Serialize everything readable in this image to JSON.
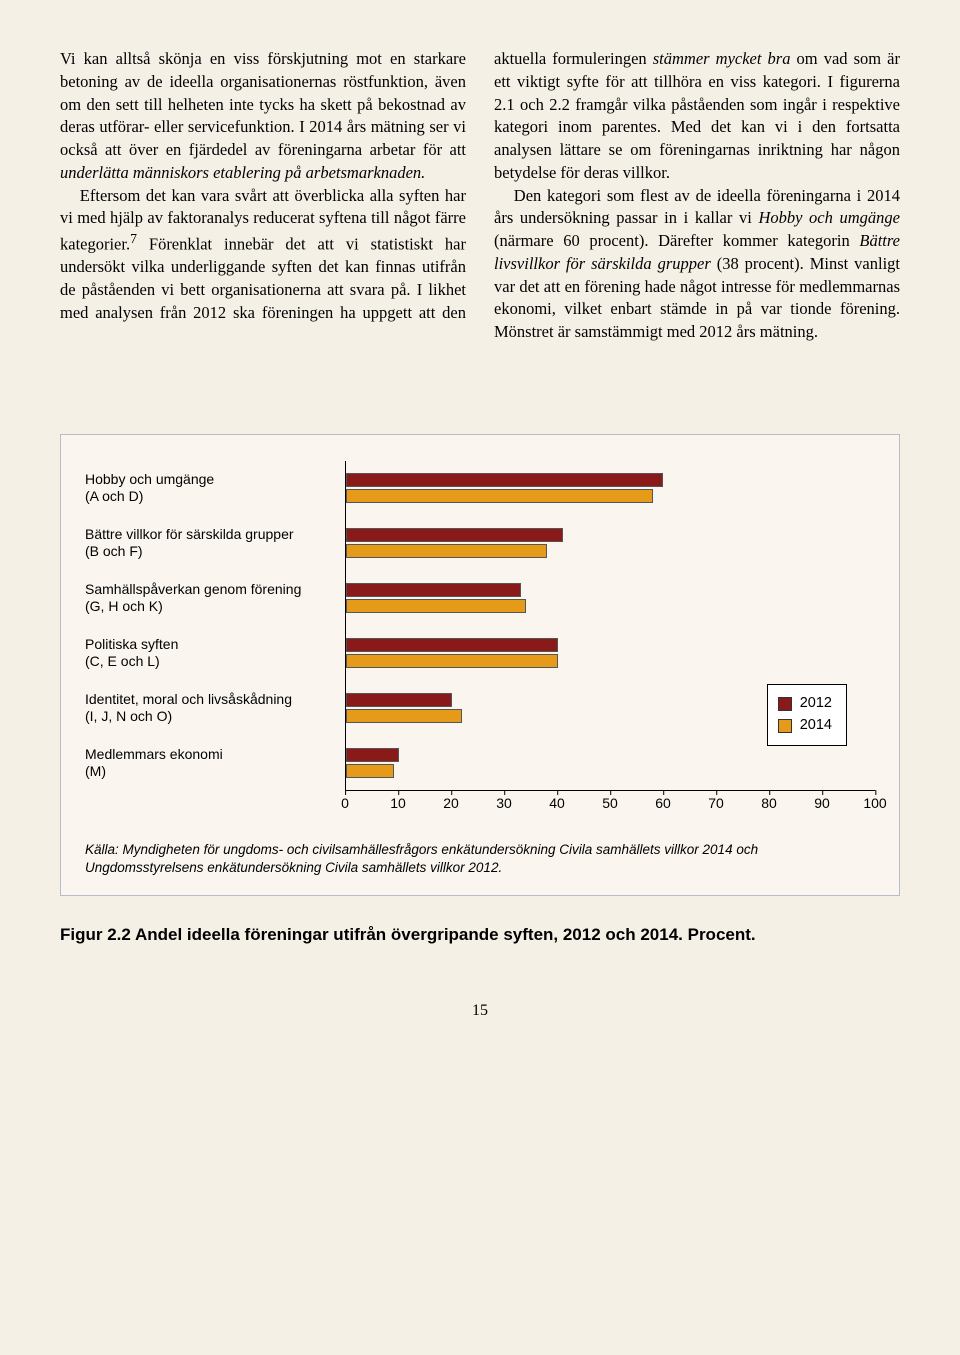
{
  "body_text": {
    "p1a": "Vi kan alltså skönja en viss förskjutning mot en starkare betoning av de ideella organisationernas röstfunktion, även om den sett till helheten inte tycks ha skett på bekostnad av deras utförar- eller servicefunktion. I 2014 års mätning ser vi också att över en fjärdedel av föreningarna arbetar för att ",
    "p1_i1": "underlätta människors etablering på arbetsmarknaden.",
    "p2a": "Eftersom det kan vara svårt att överblicka alla syften har vi med hjälp av faktoranalys reducerat syftena till något färre kategorier.",
    "p2_sup": "7",
    "p2b": " Förenklat innebär det att vi statistiskt har undersökt vilka underliggande syften det kan finnas utifrån de påståenden vi bett organisationerna att svara på. I likhet med analysen från 2012 ska föreningen ha uppgett att den aktuella formuleringen ",
    "p2_i1": "stämmer mycket bra",
    "p2c": " om vad som är ett viktigt syfte för att tillhöra en viss kategori. I figurerna 2.1 och 2.2 framgår vilka påståenden som ingår i respektive kategori inom parentes. Med det kan vi i den fortsatta analysen lättare se om föreningarnas inriktning har någon betydelse för deras villkor.",
    "p3a": "Den kategori som flest av de ideella föreningarna i 2014 års undersökning passar in i kallar vi ",
    "p3_i1": "Hobby och umgänge",
    "p3b": " (närmare 60 procent). Därefter kommer kategorin ",
    "p3_i2": "Bättre livsvillkor för särskilda grupper",
    "p3c": " (38 procent). Minst vanligt var det att en förening hade något intresse för medlemmarnas ekonomi, vilket enbart stämde in på var tionde förening. Mönstret är samstämmigt med 2012 års mätning."
  },
  "chart": {
    "type": "bar",
    "xlim": [
      0,
      100
    ],
    "xtick_step": 10,
    "xticks": [
      0,
      10,
      20,
      30,
      40,
      50,
      60,
      70,
      80,
      90,
      100
    ],
    "background_color": "#faf6ef",
    "series_colors": {
      "2012": "#8a1a1a",
      "2014": "#e69a19"
    },
    "categories": [
      {
        "label": "Hobby och umgänge",
        "sub": "(A och D)",
        "v2012": 60,
        "v2014": 58
      },
      {
        "label": "Bättre villkor för särskilda grupper",
        "sub": "(B och F)",
        "v2012": 41,
        "v2014": 38
      },
      {
        "label": "Samhällspåverkan genom förening",
        "sub": "(G, H och K)",
        "v2012": 33,
        "v2014": 34
      },
      {
        "label": "Politiska syften",
        "sub": "(C, E och L)",
        "v2012": 40,
        "v2014": 40
      },
      {
        "label": "Identitet, moral och livsåskådning",
        "sub": "(I, J, N och O)",
        "v2012": 20,
        "v2014": 22
      },
      {
        "label": "Medlemmars ekonomi",
        "sub": "(M)",
        "v2012": 10,
        "v2014": 9
      }
    ],
    "legend": [
      {
        "label": "2012",
        "color": "#8a1a1a"
      },
      {
        "label": "2014",
        "color": "#e69a19"
      }
    ]
  },
  "source": "Källa: Myndigheten för ungdoms- och civilsamhällesfrågors enkätundersökning Civila samhällets villkor 2014 och Ungdomsstyrelsens enkätundersökning Civila samhällets villkor 2012.",
  "figure_caption": "Figur 2.2 Andel ideella föreningar utifrån övergripande syften, 2012 och 2014. Procent.",
  "page_number": "15"
}
